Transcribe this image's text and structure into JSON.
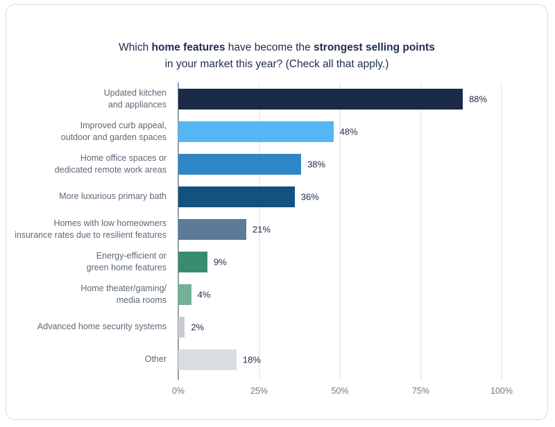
{
  "title": {
    "part1": "Which ",
    "bold1": "home features",
    "part2": " have become the ",
    "bold2": "strongest selling points",
    "line2": "in your market this year? (Check all that apply.)"
  },
  "chart_data": {
    "type": "bar",
    "orientation": "horizontal",
    "title": "Which home features have become the strongest selling points in your market this year? (Check all that apply.)",
    "categories": [
      "Updated kitchen and appliances",
      "Improved curb appeal, outdoor and garden spaces",
      "Home office spaces or dedicated remote work areas",
      "More luxurious primary bath",
      "Homes with low homeowners insurance rates due to resilient features",
      "Energy-efficient or green home features",
      "Home theater/gaming/ media rooms",
      "Advanced home security systems",
      "Other"
    ],
    "label_lines": [
      [
        "Updated kitchen",
        "and appliances"
      ],
      [
        "Improved curb appeal,",
        "outdoor and garden spaces"
      ],
      [
        "Home office spaces or",
        "dedicated remote work areas"
      ],
      [
        "More luxurious primary bath"
      ],
      [
        "Homes with low homeowners",
        "insurance rates due to resilient features"
      ],
      [
        "Energy-efficient or",
        "green home features"
      ],
      [
        "Home theater/gaming/",
        "media rooms"
      ],
      [
        "Advanced home security systems"
      ],
      [
        "Other"
      ]
    ],
    "values": [
      88,
      48,
      38,
      36,
      21,
      9,
      4,
      2,
      18
    ],
    "value_labels": [
      "88%",
      "48%",
      "38%",
      "36%",
      "21%",
      "9%",
      "4%",
      "2%",
      "18%"
    ],
    "colors": [
      "#1b2a49",
      "#54b6f2",
      "#2f86c6",
      "#14517f",
      "#5d7a97",
      "#3a8c70",
      "#74b097",
      "#c9cdd2",
      "#dadde1"
    ],
    "xlim": [
      0,
      100
    ],
    "x_tick_values": [
      0,
      25,
      50,
      75,
      100
    ],
    "x_ticks": [
      "0%",
      "25%",
      "50%",
      "75%",
      "100%"
    ],
    "grid": true,
    "legend": "none",
    "axis_line_color": "#2e3d55",
    "gridline_color": "#dcdfe3",
    "label_color": "#5d6877",
    "value_color": "#1b2a49"
  }
}
